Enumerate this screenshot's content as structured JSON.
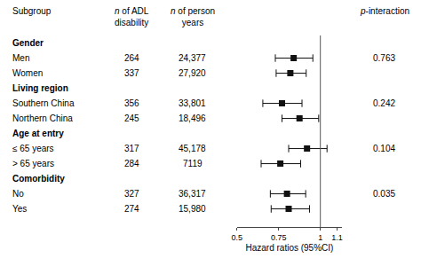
{
  "chart_data": {
    "type": "forest",
    "categories": [
      "Gender",
      "Men",
      "Women",
      "Living region",
      "Southern China",
      "Northern China",
      "Age at entry",
      "≤ 65 years",
      "> 65 years",
      "Comorbidity",
      "No",
      "Yes"
    ],
    "values": [
      null,
      0.84,
      0.82,
      null,
      0.77,
      0.875,
      null,
      0.92,
      0.76,
      null,
      0.8,
      0.81
    ],
    "ci_lo": [
      null,
      0.73,
      0.735,
      null,
      0.655,
      0.77,
      null,
      0.81,
      0.645,
      null,
      0.7,
      0.705
    ],
    "ci_hi": [
      null,
      0.955,
      0.915,
      null,
      0.89,
      0.99,
      null,
      1.04,
      0.882,
      null,
      0.912,
      0.935
    ],
    "n_adl": [
      null,
      "264",
      "337",
      null,
      "356",
      "245",
      null,
      "317",
      "284",
      null,
      "327",
      "274"
    ],
    "n_person": [
      null,
      "24,377",
      "27,920",
      null,
      "33,801",
      "18,496",
      null,
      "45,178",
      "7119",
      null,
      "36,317",
      "15,980"
    ],
    "p_interaction": [
      null,
      "0.763",
      null,
      null,
      "0.242",
      null,
      null,
      "0.104",
      null,
      null,
      "0.035",
      null
    ],
    "column_headers": {
      "subgroup": "Subgroup",
      "n_adl": {
        "italic": "n",
        "text": " of ADL",
        "line2": "disability"
      },
      "n_person": {
        "italic": "n",
        "text": " of person",
        "line2": "years"
      },
      "p_interaction": {
        "italic": "p",
        "text": "-interaction"
      }
    },
    "xlabel": "Hazard ratios (95%CI)",
    "xlim": [
      0.5,
      1.13
    ],
    "xticks": [
      0.5,
      0.75,
      1,
      1.1
    ],
    "reference_line": 1,
    "color": "#111111",
    "marker": "square",
    "grid": false
  }
}
